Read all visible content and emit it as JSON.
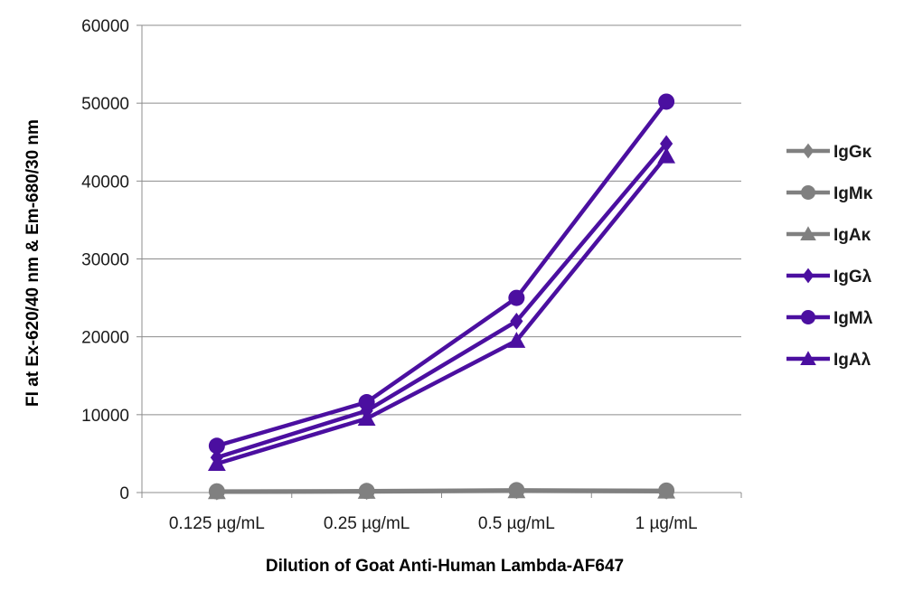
{
  "chart_data": {
    "type": "line",
    "title": "",
    "xlabel": "Dilution of Goat Anti-Human Lambda-AF647",
    "ylabel": "FI at Ex-620/40 nm & Em-680/30 nm",
    "categories": [
      "0.125 µg/mL",
      "0.25 µg/mL",
      "0.5 µg/mL",
      "1 µg/mL"
    ],
    "ylim": [
      0,
      60000
    ],
    "yticks": [
      0,
      10000,
      20000,
      30000,
      40000,
      50000,
      60000
    ],
    "grid": true,
    "legend_position": "right",
    "series": [
      {
        "name": "IgGκ",
        "marker": "diamond",
        "color": "#808080",
        "values": [
          100,
          150,
          250,
          200
        ]
      },
      {
        "name": "IgMκ",
        "marker": "circle",
        "color": "#808080",
        "values": [
          150,
          200,
          300,
          250
        ]
      },
      {
        "name": "IgAκ",
        "marker": "triangle",
        "color": "#808080",
        "values": [
          80,
          120,
          200,
          150
        ]
      },
      {
        "name": "IgGλ",
        "marker": "diamond",
        "color": "#4B0FA0",
        "values": [
          4500,
          10500,
          22000,
          44800
        ]
      },
      {
        "name": "IgMλ",
        "marker": "circle",
        "color": "#4B0FA0",
        "values": [
          6000,
          11600,
          25000,
          50200
        ]
      },
      {
        "name": "IgAλ",
        "marker": "triangle",
        "color": "#4B0FA0",
        "values": [
          3700,
          9500,
          19500,
          43200
        ]
      }
    ]
  }
}
